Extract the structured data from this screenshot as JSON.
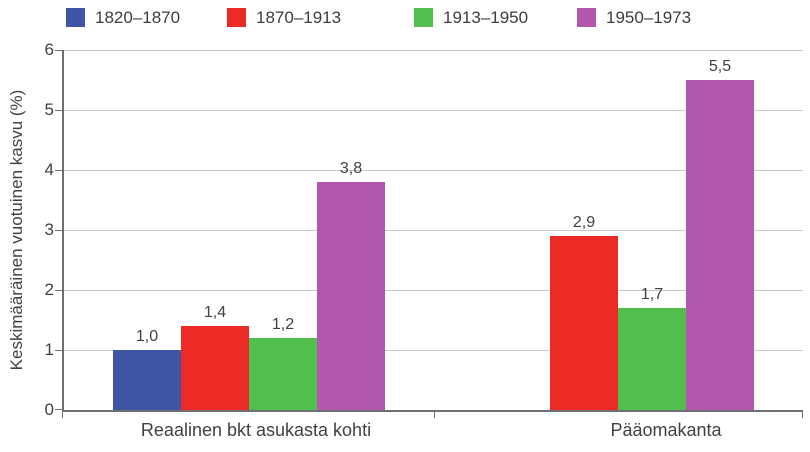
{
  "chart_data": {
    "type": "bar",
    "title": "",
    "xlabel": "",
    "ylabel": "Keskimääräinen vuotuinen kasvu (%)",
    "ylim": [
      0,
      6
    ],
    "yticks": [
      "0",
      "1",
      "2",
      "3",
      "4",
      "5",
      "6"
    ],
    "grid": true,
    "legend_position": "top",
    "categories": [
      "Reaalinen bkt asukasta kohti",
      "Pääomakanta"
    ],
    "series": [
      {
        "name": "1820–1870",
        "color": "#3E55A6",
        "values": [
          1.0,
          null
        ],
        "labels": [
          "1,0",
          null
        ]
      },
      {
        "name": "1870–1913",
        "color": "#EC2A25",
        "values": [
          1.4,
          2.9
        ],
        "labels": [
          "1,4",
          "2,9"
        ]
      },
      {
        "name": "1913–1950",
        "color": "#51BE4D",
        "values": [
          1.2,
          1.7
        ],
        "labels": [
          "1,2",
          "1,7"
        ]
      },
      {
        "name": "1950–1973",
        "color": "#B157AD",
        "values": [
          3.8,
          5.5
        ],
        "labels": [
          "3,8",
          "5,5"
        ]
      }
    ]
  },
  "colors": {
    "axis": "#6e6f72",
    "grid": "#c8c9cb",
    "text": "#414042",
    "background": "#ffffff"
  }
}
